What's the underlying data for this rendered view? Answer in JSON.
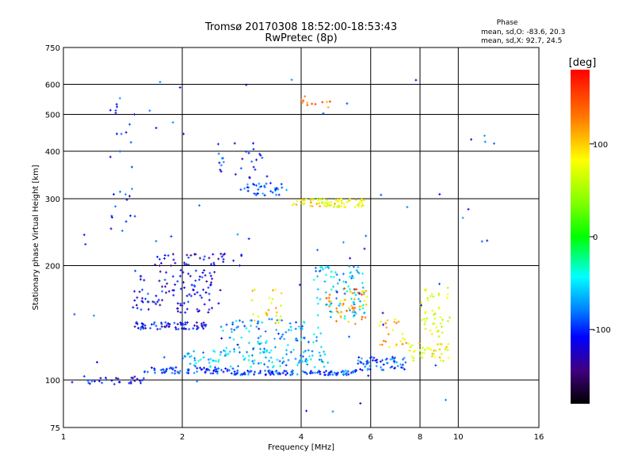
{
  "chart_data": {
    "type": "scatter",
    "title": "Tromsø 20170308 18:52:00-18:53:43",
    "subtitle": "RwPretec (8p)",
    "xlabel": "Frequency [MHz]",
    "ylabel": "Stationary phase Virtual Height [km]",
    "x_scale": "log",
    "y_scale": "log",
    "xlim": [
      1,
      16
    ],
    "ylim": [
      75,
      750
    ],
    "x_ticks": [
      1,
      2,
      4,
      6,
      8,
      10,
      16
    ],
    "y_ticks": [
      75,
      100,
      200,
      300,
      400,
      500,
      600,
      750
    ],
    "grid": true,
    "stats": {
      "heading": "Phase",
      "line_o": "mean, sd,O: -83.6, 20.3",
      "line_x": "mean, sd,X:  92.7, 24.5"
    },
    "colorbar": {
      "label": "[deg]",
      "range": [
        -180,
        180
      ],
      "ticks": [
        100,
        0,
        -100
      ],
      "tick_labels": [
        "100",
        "0",
        "-100"
      ]
    },
    "traces": [
      {
        "x_range": [
          1.05,
          1.6
        ],
        "h_range": [
          97,
          103
        ],
        "phase": -110,
        "count": 30
      },
      {
        "x_range": [
          1.6,
          2.7
        ],
        "h_range": [
          104,
          108
        ],
        "phase": -100,
        "count": 70
      },
      {
        "x_range": [
          2.7,
          5.5
        ],
        "h_range": [
          103,
          106
        ],
        "phase": -95,
        "count": 120
      },
      {
        "x_range": [
          5.5,
          7.5
        ],
        "h_range": [
          106,
          116
        ],
        "phase": -90,
        "count": 60
      },
      {
        "x_range": [
          7.5,
          9.5
        ],
        "h_range": [
          112,
          125
        ],
        "phase": 90,
        "count": 40
      },
      {
        "x_range": [
          2.0,
          4.8
        ],
        "h_range": [
          108,
          120
        ],
        "phase": -60,
        "count": 110
      },
      {
        "x_range": [
          2.5,
          4.5
        ],
        "h_range": [
          118,
          145
        ],
        "phase": -70,
        "count": 90
      },
      {
        "x_range": [
          1.5,
          2.3
        ],
        "h_range": [
          136,
          142
        ],
        "phase": -110,
        "count": 70
      },
      {
        "x_range": [
          1.5,
          2.5
        ],
        "h_range": [
          150,
          195
        ],
        "phase": -115,
        "count": 110
      },
      {
        "x_range": [
          1.7,
          2.9
        ],
        "h_range": [
          200,
          215
        ],
        "phase": -125,
        "count": 40
      },
      {
        "x_range": [
          4.3,
          5.8
        ],
        "h_range": [
          145,
          200
        ],
        "phase": -60,
        "count": 90
      },
      {
        "x_range": [
          4.6,
          5.9
        ],
        "h_range": [
          140,
          175
        ],
        "phase": 130,
        "count": 50
      },
      {
        "x_range": [
          3.8,
          5.8
        ],
        "h_range": [
          285,
          300
        ],
        "phase": 95,
        "count": 80
      },
      {
        "x_range": [
          2.8,
          3.7
        ],
        "h_range": [
          305,
          330
        ],
        "phase": -90,
        "count": 35
      },
      {
        "x_range": [
          3.0,
          3.6
        ],
        "h_range": [
          140,
          175
        ],
        "phase": 100,
        "count": 25
      },
      {
        "x_range": [
          6.3,
          7.5
        ],
        "h_range": [
          120,
          145
        ],
        "phase": 110,
        "count": 25
      },
      {
        "x_range": [
          8.0,
          9.6
        ],
        "h_range": [
          130,
          175
        ],
        "phase": 80,
        "count": 45
      },
      {
        "x_range": [
          4.0,
          4.8
        ],
        "h_range": [
          520,
          560
        ],
        "phase": 130,
        "count": 12
      },
      {
        "x_range": [
          1.3,
          1.5
        ],
        "h_range": [
          240,
          600
        ],
        "phase": -100,
        "count": 25
      },
      {
        "x_range": [
          2.4,
          3.2
        ],
        "h_range": [
          340,
          420
        ],
        "phase": -110,
        "count": 25
      },
      {
        "x_range": [
          1.0,
          12.5
        ],
        "h_range": [
          78,
          620
        ],
        "phase": -100,
        "count": 70
      }
    ]
  }
}
